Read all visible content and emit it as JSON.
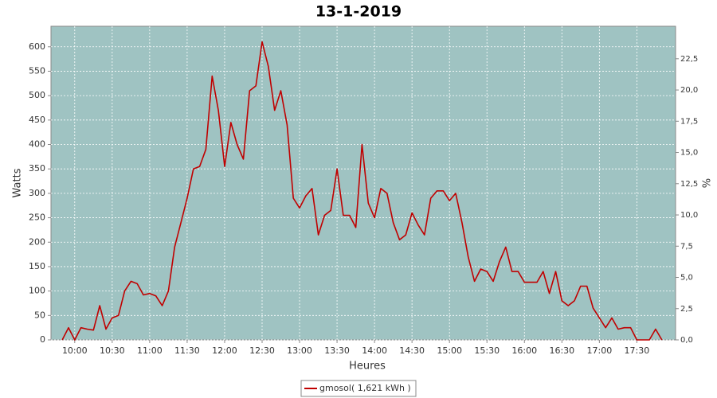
{
  "chart_data": {
    "type": "line",
    "title": "13-1-2019",
    "x_label": "Heures",
    "y_label": "Watts",
    "y2_label": "%",
    "x": [
      "09:50",
      "09:55",
      "10:00",
      "10:05",
      "10:10",
      "10:15",
      "10:20",
      "10:25",
      "10:30",
      "10:35",
      "10:40",
      "10:45",
      "10:50",
      "10:55",
      "11:00",
      "11:05",
      "11:10",
      "11:15",
      "11:20",
      "11:25",
      "11:30",
      "11:35",
      "11:40",
      "11:45",
      "11:50",
      "11:55",
      "12:00",
      "12:05",
      "12:10",
      "12:15",
      "12:20",
      "12:25",
      "12:30",
      "12:35",
      "12:40",
      "12:45",
      "12:50",
      "12:55",
      "13:00",
      "13:05",
      "13:10",
      "13:15",
      "13:20",
      "13:25",
      "13:30",
      "13:35",
      "13:40",
      "13:45",
      "13:50",
      "13:55",
      "14:00",
      "14:05",
      "14:10",
      "14:15",
      "14:20",
      "14:25",
      "14:30",
      "14:35",
      "14:40",
      "14:45",
      "14:50",
      "14:55",
      "15:00",
      "15:05",
      "15:10",
      "15:15",
      "15:20",
      "15:25",
      "15:30",
      "15:35",
      "15:40",
      "15:45",
      "15:50",
      "15:55",
      "16:00",
      "16:05",
      "16:10",
      "16:15",
      "16:20",
      "16:25",
      "16:30",
      "16:35",
      "16:40",
      "16:45",
      "16:50",
      "16:55",
      "17:00",
      "17:05",
      "17:10",
      "17:15",
      "17:20",
      "17:25",
      "17:30",
      "17:35",
      "17:40",
      "17:45",
      "17:50"
    ],
    "series": [
      {
        "name": "gmosol( 1,621 kWh )",
        "color": "#c00000",
        "values": [
          0,
          25,
          0,
          25,
          22,
          20,
          70,
          22,
          45,
          50,
          100,
          120,
          115,
          92,
          95,
          90,
          70,
          100,
          190,
          240,
          290,
          350,
          355,
          390,
          540,
          470,
          355,
          445,
          400,
          370,
          510,
          520,
          610,
          560,
          470,
          510,
          440,
          290,
          270,
          295,
          310,
          215,
          255,
          265,
          350,
          255,
          255,
          230,
          400,
          280,
          250,
          310,
          300,
          240,
          205,
          215,
          260,
          235,
          215,
          290,
          305,
          305,
          285,
          300,
          240,
          170,
          120,
          145,
          140,
          120,
          160,
          190,
          140,
          140,
          118,
          118,
          118,
          140,
          95,
          140,
          80,
          70,
          80,
          110,
          110,
          65,
          45,
          25,
          45,
          22,
          25,
          25,
          0,
          0,
          0,
          22,
          0
        ]
      }
    ],
    "xlim": [
      "09:41",
      "18:01"
    ],
    "xticks": [
      "10:00",
      "10:30",
      "11:00",
      "11:30",
      "12:00",
      "12:30",
      "13:00",
      "13:30",
      "14:00",
      "14:30",
      "15:00",
      "15:30",
      "16:00",
      "16:30",
      "17:00",
      "17:30"
    ],
    "ylim": [
      0,
      642
    ],
    "yticks": [
      0,
      50,
      100,
      150,
      200,
      250,
      300,
      350,
      400,
      450,
      500,
      550,
      600
    ],
    "y2lim": [
      0,
      25.1
    ],
    "y2ticks": [
      {
        "value": 0,
        "label": "0,0"
      },
      {
        "value": 2.5,
        "label": "2,5"
      },
      {
        "value": 5,
        "label": "5,0"
      },
      {
        "value": 7.5,
        "label": "7,5"
      },
      {
        "value": 10,
        "label": "10,0"
      },
      {
        "value": 12.5,
        "label": "12,5"
      },
      {
        "value": 15,
        "label": "15,0"
      },
      {
        "value": 17.5,
        "label": "17,5"
      },
      {
        "value": 20,
        "label": "20,0"
      },
      {
        "value": 22.5,
        "label": "22,5"
      }
    ],
    "grid": true,
    "plot_background": "#9fc3c2"
  }
}
